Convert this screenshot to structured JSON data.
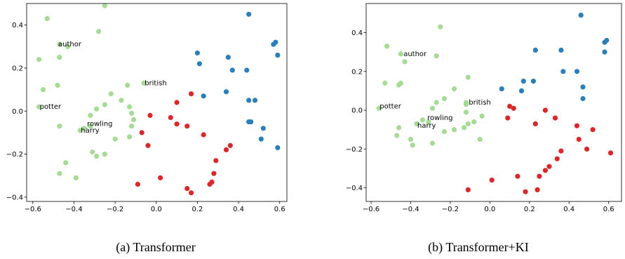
{
  "captions": [
    "(a)  Transformer",
    "(b)  Transformer+KI"
  ],
  "colors": {
    "light": "#a6db96",
    "blue": "#2a7fbb",
    "red": "#d9282b"
  },
  "chart_data": [
    {
      "type": "scatter",
      "title": "",
      "xlabel": "",
      "ylabel": "",
      "xlim": [
        -0.63,
        0.635
      ],
      "ylim": [
        -0.42,
        0.5
      ],
      "xticks": [
        -0.6,
        -0.4,
        -0.2,
        0.0,
        0.2,
        0.4,
        0.6
      ],
      "yticks": [
        -0.4,
        -0.2,
        0.0,
        0.2,
        0.4
      ],
      "grid": false,
      "series": [
        {
          "color_key": "light",
          "points": [
            [
              -0.53,
              0.43
            ],
            [
              -0.25,
              0.49
            ],
            [
              -0.28,
              0.37
            ],
            [
              -0.57,
              0.24
            ],
            [
              -0.47,
              0.31
            ],
            [
              -0.43,
              0.3
            ],
            [
              -0.47,
              0.25
            ],
            [
              -0.55,
              0.1
            ],
            [
              -0.48,
              0.12
            ],
            [
              -0.22,
              0.08
            ],
            [
              -0.25,
              0.03
            ],
            [
              -0.29,
              0.01
            ],
            [
              -0.32,
              -0.02
            ],
            [
              -0.57,
              0.02
            ],
            [
              -0.47,
              -0.07
            ],
            [
              -0.35,
              -0.08
            ],
            [
              -0.37,
              -0.09
            ],
            [
              -0.32,
              -0.07
            ],
            [
              -0.14,
              0.12
            ],
            [
              -0.06,
              0.13
            ],
            [
              -0.17,
              0.05
            ],
            [
              -0.13,
              0.02
            ],
            [
              -0.12,
              -0.01
            ],
            [
              -0.11,
              -0.04
            ],
            [
              -0.12,
              -0.07
            ],
            [
              -0.13,
              -0.12
            ],
            [
              -0.2,
              -0.13
            ],
            [
              -0.31,
              -0.19
            ],
            [
              -0.29,
              -0.21
            ],
            [
              -0.25,
              -0.2
            ],
            [
              -0.44,
              -0.24
            ],
            [
              -0.47,
              -0.29
            ],
            [
              -0.39,
              -0.31
            ]
          ]
        },
        {
          "color_key": "blue",
          "points": [
            [
              0.45,
              0.45
            ],
            [
              0.58,
              0.32
            ],
            [
              0.57,
              0.31
            ],
            [
              0.59,
              0.26
            ],
            [
              0.2,
              0.27
            ],
            [
              0.35,
              0.25
            ],
            [
              0.21,
              0.22
            ],
            [
              0.44,
              0.19
            ],
            [
              0.37,
              0.19
            ],
            [
              0.34,
              0.09
            ],
            [
              0.23,
              0.07
            ],
            [
              0.45,
              0.05
            ],
            [
              0.48,
              0.05
            ],
            [
              0.46,
              -0.05
            ],
            [
              0.45,
              -0.05
            ],
            [
              0.52,
              -0.08
            ],
            [
              0.51,
              -0.13
            ],
            [
              0.59,
              -0.17
            ]
          ]
        },
        {
          "color_key": "red",
          "points": [
            [
              0.17,
              0.08
            ],
            [
              0.1,
              0.04
            ],
            [
              -0.03,
              -0.02
            ],
            [
              0.07,
              -0.03
            ],
            [
              0.1,
              -0.06
            ],
            [
              0.15,
              -0.07
            ],
            [
              -0.07,
              -0.1
            ],
            [
              0.23,
              -0.11
            ],
            [
              0.36,
              -0.16
            ],
            [
              -0.04,
              -0.16
            ],
            [
              0.34,
              -0.18
            ],
            [
              0.29,
              -0.23
            ],
            [
              0.28,
              -0.29
            ],
            [
              0.02,
              -0.31
            ],
            [
              0.27,
              -0.33
            ],
            [
              0.26,
              -0.34
            ],
            [
              -0.09,
              -0.34
            ],
            [
              0.15,
              -0.36
            ],
            [
              0.17,
              -0.38
            ]
          ]
        }
      ],
      "labels": [
        {
          "text": "author",
          "x": -0.48,
          "y": 0.31
        },
        {
          "text": "potter",
          "x": -0.57,
          "y": 0.02
        },
        {
          "text": "rowling",
          "x": -0.34,
          "y": -0.06
        },
        {
          "text": "harry",
          "x": -0.37,
          "y": -0.09
        },
        {
          "text": "british",
          "x": -0.06,
          "y": 0.13
        }
      ]
    },
    {
      "type": "scatter",
      "title": "",
      "xlabel": "",
      "ylabel": "",
      "xlim": [
        -0.625,
        0.665
      ],
      "ylim": [
        -0.47,
        0.55
      ],
      "xticks": [
        -0.6,
        -0.4,
        -0.2,
        0.0,
        0.2,
        0.4,
        0.6
      ],
      "yticks": [
        -0.4,
        -0.2,
        0.0,
        0.2,
        0.4
      ],
      "grid": false,
      "series": [
        {
          "color_key": "light",
          "points": [
            [
              -0.25,
              0.43
            ],
            [
              -0.52,
              0.33
            ],
            [
              -0.45,
              0.29
            ],
            [
              -0.27,
              0.28
            ],
            [
              -0.43,
              0.25
            ],
            [
              -0.53,
              0.14
            ],
            [
              -0.46,
              0.13
            ],
            [
              -0.45,
              0.14
            ],
            [
              -0.11,
              0.17
            ],
            [
              -0.18,
              0.11
            ],
            [
              -0.23,
              0.06
            ],
            [
              -0.27,
              0.04
            ],
            [
              -0.29,
              0.01
            ],
            [
              -0.56,
              0.01
            ],
            [
              -0.12,
              0.04
            ],
            [
              -0.12,
              0.03
            ],
            [
              -0.12,
              -0.01
            ],
            [
              -0.34,
              -0.05
            ],
            [
              -0.37,
              -0.07
            ],
            [
              -0.31,
              -0.06
            ],
            [
              -0.08,
              -0.06
            ],
            [
              -0.11,
              -0.07
            ],
            [
              -0.04,
              -0.03
            ],
            [
              -0.13,
              -0.09
            ],
            [
              -0.18,
              -0.1
            ],
            [
              -0.23,
              -0.11
            ],
            [
              -0.46,
              -0.09
            ],
            [
              -0.47,
              -0.13
            ],
            [
              -0.4,
              -0.15
            ],
            [
              -0.39,
              -0.18
            ],
            [
              -0.29,
              -0.17
            ],
            [
              -0.05,
              -0.15
            ]
          ]
        },
        {
          "color_key": "blue",
          "points": [
            [
              0.46,
              0.49
            ],
            [
              0.59,
              0.36
            ],
            [
              0.58,
              0.35
            ],
            [
              0.58,
              0.3
            ],
            [
              0.23,
              0.31
            ],
            [
              0.36,
              0.31
            ],
            [
              0.37,
              0.2
            ],
            [
              0.44,
              0.2
            ],
            [
              0.17,
              0.15
            ],
            [
              0.22,
              0.15
            ],
            [
              0.47,
              0.12
            ],
            [
              0.06,
              0.11
            ],
            [
              0.16,
              0.1
            ],
            [
              0.47,
              0.06
            ]
          ]
        },
        {
          "color_key": "red",
          "points": [
            [
              0.1,
              0.02
            ],
            [
              0.12,
              0.01
            ],
            [
              0.28,
              0.0
            ],
            [
              0.09,
              -0.04
            ],
            [
              0.33,
              -0.04
            ],
            [
              0.23,
              -0.07
            ],
            [
              0.44,
              -0.08
            ],
            [
              0.52,
              -0.1
            ],
            [
              0.45,
              -0.15
            ],
            [
              0.49,
              -0.2
            ],
            [
              0.36,
              -0.21
            ],
            [
              0.34,
              -0.25
            ],
            [
              0.61,
              -0.22
            ],
            [
              0.3,
              -0.29
            ],
            [
              0.28,
              -0.31
            ],
            [
              0.14,
              -0.34
            ],
            [
              0.25,
              -0.34
            ],
            [
              0.01,
              -0.36
            ],
            [
              0.24,
              -0.41
            ],
            [
              -0.11,
              -0.41
            ],
            [
              0.18,
              -0.42
            ]
          ]
        }
      ],
      "labels": [
        {
          "text": "author",
          "x": -0.44,
          "y": 0.29
        },
        {
          "text": "potter",
          "x": -0.56,
          "y": 0.02
        },
        {
          "text": "rowling",
          "x": -0.32,
          "y": -0.04
        },
        {
          "text": "harry",
          "x": -0.37,
          "y": -0.08
        },
        {
          "text": "british",
          "x": -0.11,
          "y": 0.04
        }
      ]
    }
  ]
}
